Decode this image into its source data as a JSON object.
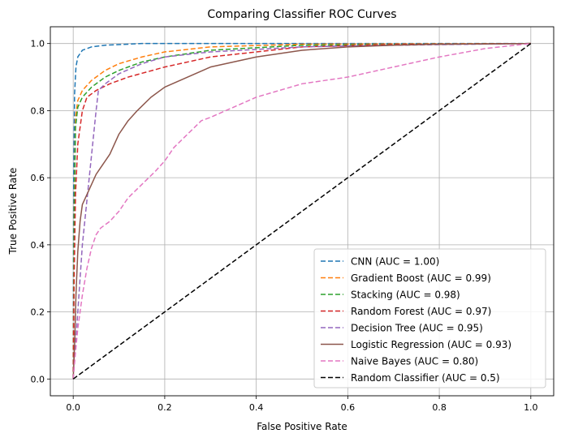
{
  "chart_data": {
    "type": "line",
    "title": "Comparing Classifier ROC Curves",
    "xlabel": "False Positive Rate",
    "ylabel": "True Positive Rate",
    "xlim": [
      -0.05,
      1.05
    ],
    "ylim": [
      -0.05,
      1.05
    ],
    "xticks": [
      "0.0",
      "0.2",
      "0.4",
      "0.6",
      "0.8",
      "1.0"
    ],
    "yticks": [
      "0.0",
      "0.2",
      "0.4",
      "0.6",
      "0.8",
      "1.0"
    ],
    "grid": true,
    "legend_position": "lower-right",
    "series": [
      {
        "name": "CNN (AUC = 1.00)",
        "color": "#1f77b4",
        "dash": "dashed",
        "points": [
          [
            0,
            0
          ],
          [
            0.001,
            0.6
          ],
          [
            0.003,
            0.85
          ],
          [
            0.006,
            0.93
          ],
          [
            0.01,
            0.96
          ],
          [
            0.02,
            0.98
          ],
          [
            0.04,
            0.99
          ],
          [
            0.07,
            0.995
          ],
          [
            0.15,
            1.0
          ],
          [
            1,
            1
          ]
        ]
      },
      {
        "name": "Gradient Boost (AUC = 0.99)",
        "color": "#ff7f0e",
        "dash": "dashed",
        "points": [
          [
            0,
            0
          ],
          [
            0.002,
            0.5
          ],
          [
            0.005,
            0.78
          ],
          [
            0.01,
            0.83
          ],
          [
            0.02,
            0.86
          ],
          [
            0.04,
            0.89
          ],
          [
            0.07,
            0.92
          ],
          [
            0.1,
            0.94
          ],
          [
            0.15,
            0.96
          ],
          [
            0.2,
            0.975
          ],
          [
            0.3,
            0.99
          ],
          [
            0.5,
            0.998
          ],
          [
            1,
            1
          ]
        ]
      },
      {
        "name": "Stacking (AUC = 0.98)",
        "color": "#2ca02c",
        "dash": "dashed",
        "points": [
          [
            0,
            0
          ],
          [
            0.002,
            0.45
          ],
          [
            0.005,
            0.75
          ],
          [
            0.01,
            0.81
          ],
          [
            0.02,
            0.84
          ],
          [
            0.04,
            0.87
          ],
          [
            0.07,
            0.9
          ],
          [
            0.1,
            0.92
          ],
          [
            0.15,
            0.945
          ],
          [
            0.2,
            0.96
          ],
          [
            0.3,
            0.98
          ],
          [
            0.5,
            0.995
          ],
          [
            1,
            1
          ]
        ]
      },
      {
        "name": "Random Forest (AUC = 0.97)",
        "color": "#d62728",
        "dash": "dashed",
        "points": [
          [
            0,
            0
          ],
          [
            0.002,
            0.3
          ],
          [
            0.005,
            0.55
          ],
          [
            0.01,
            0.7
          ],
          [
            0.02,
            0.8
          ],
          [
            0.03,
            0.84
          ],
          [
            0.05,
            0.86
          ],
          [
            0.08,
            0.88
          ],
          [
            0.12,
            0.9
          ],
          [
            0.2,
            0.93
          ],
          [
            0.3,
            0.96
          ],
          [
            0.5,
            0.99
          ],
          [
            0.7,
            0.997
          ],
          [
            1,
            1
          ]
        ]
      },
      {
        "name": "Decision Tree (AUC = 0.95)",
        "color": "#9467bd",
        "dash": "dashed",
        "points": [
          [
            0,
            0
          ],
          [
            0.01,
            0.2
          ],
          [
            0.02,
            0.4
          ],
          [
            0.035,
            0.6
          ],
          [
            0.05,
            0.8
          ],
          [
            0.055,
            0.86
          ],
          [
            0.07,
            0.88
          ],
          [
            0.1,
            0.91
          ],
          [
            0.15,
            0.94
          ],
          [
            0.2,
            0.96
          ],
          [
            0.3,
            0.975
          ],
          [
            0.5,
            0.99
          ],
          [
            0.7,
            0.995
          ],
          [
            1,
            1
          ]
        ]
      },
      {
        "name": "Logistic Regression (AUC = 0.93)",
        "color": "#8c564b",
        "dash": "solid",
        "points": [
          [
            0,
            0
          ],
          [
            0.003,
            0.1
          ],
          [
            0.006,
            0.25
          ],
          [
            0.01,
            0.38
          ],
          [
            0.015,
            0.47
          ],
          [
            0.02,
            0.52
          ],
          [
            0.03,
            0.55
          ],
          [
            0.04,
            0.58
          ],
          [
            0.05,
            0.61
          ],
          [
            0.06,
            0.63
          ],
          [
            0.08,
            0.67
          ],
          [
            0.1,
            0.73
          ],
          [
            0.12,
            0.77
          ],
          [
            0.14,
            0.8
          ],
          [
            0.17,
            0.84
          ],
          [
            0.2,
            0.87
          ],
          [
            0.25,
            0.9
          ],
          [
            0.3,
            0.93
          ],
          [
            0.4,
            0.96
          ],
          [
            0.5,
            0.98
          ],
          [
            0.6,
            0.99
          ],
          [
            0.7,
            0.995
          ],
          [
            0.8,
            0.998
          ],
          [
            1,
            1
          ]
        ]
      },
      {
        "name": "Naive Bayes (AUC = 0.80)",
        "color": "#e377c2",
        "dash": "dashed",
        "points": [
          [
            0,
            0
          ],
          [
            0.005,
            0.08
          ],
          [
            0.01,
            0.15
          ],
          [
            0.02,
            0.25
          ],
          [
            0.03,
            0.33
          ],
          [
            0.04,
            0.39
          ],
          [
            0.05,
            0.43
          ],
          [
            0.06,
            0.45
          ],
          [
            0.08,
            0.47
          ],
          [
            0.1,
            0.5
          ],
          [
            0.12,
            0.54
          ],
          [
            0.15,
            0.58
          ],
          [
            0.18,
            0.62
          ],
          [
            0.2,
            0.65
          ],
          [
            0.22,
            0.69
          ],
          [
            0.25,
            0.73
          ],
          [
            0.28,
            0.77
          ],
          [
            0.3,
            0.78
          ],
          [
            0.35,
            0.81
          ],
          [
            0.4,
            0.84
          ],
          [
            0.45,
            0.86
          ],
          [
            0.5,
            0.88
          ],
          [
            0.6,
            0.9
          ],
          [
            0.7,
            0.93
          ],
          [
            0.8,
            0.96
          ],
          [
            0.9,
            0.985
          ],
          [
            1,
            1
          ]
        ]
      },
      {
        "name": "Random Classifier (AUC = 0.5)",
        "color": "#000000",
        "dash": "dashed",
        "points": [
          [
            0,
            0
          ],
          [
            1,
            1
          ]
        ]
      }
    ]
  }
}
